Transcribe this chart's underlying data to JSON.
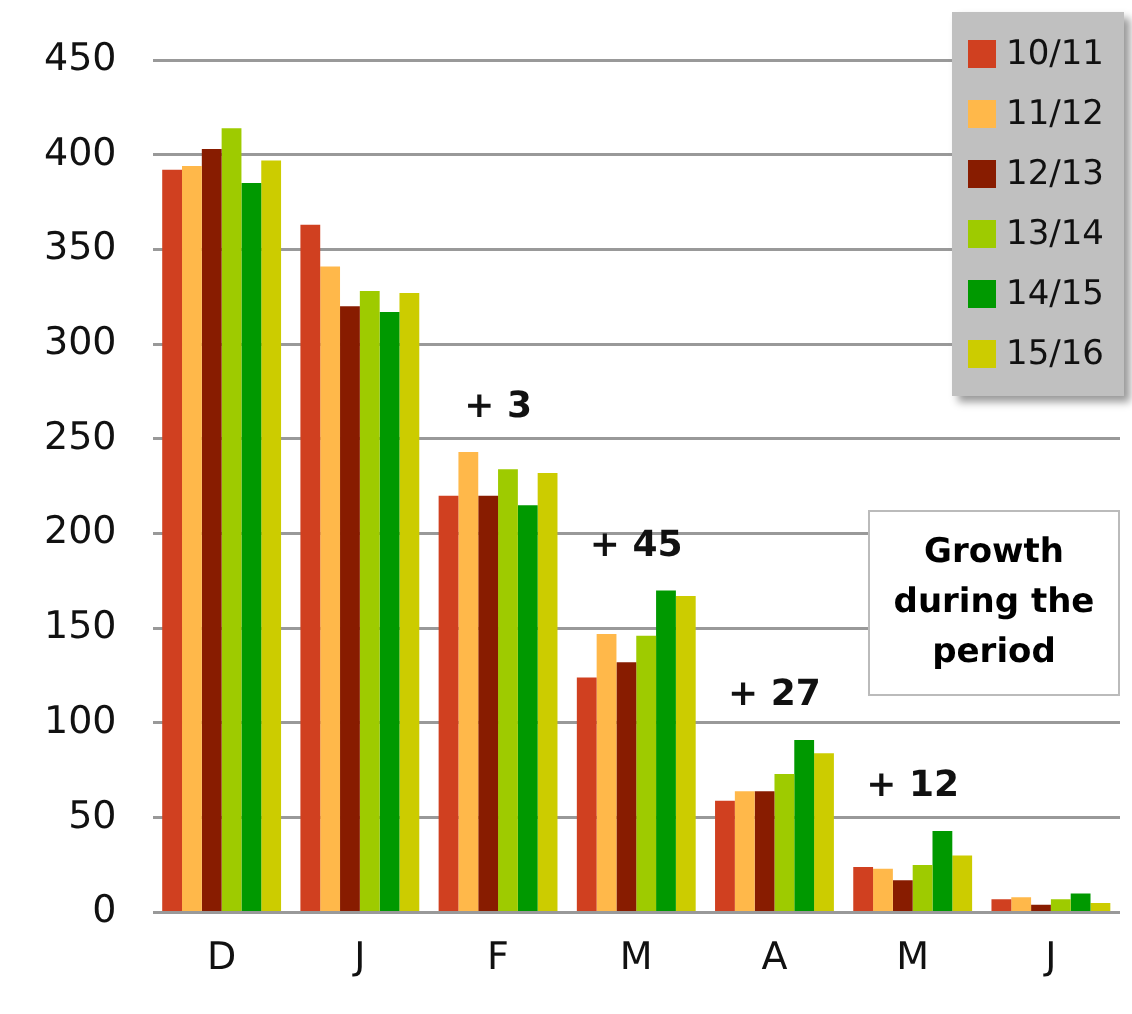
{
  "chart_data": {
    "type": "bar",
    "categories": [
      "D",
      "J",
      "F",
      "M",
      "A",
      "M",
      "J"
    ],
    "series": [
      {
        "name": "10/11",
        "color": "#d04020",
        "values": [
          392,
          363,
          220,
          124,
          59,
          24,
          7
        ]
      },
      {
        "name": "11/12",
        "color": "#ffb84a",
        "values": [
          394,
          341,
          243,
          147,
          64,
          23,
          8
        ]
      },
      {
        "name": "12/13",
        "color": "#881c00",
        "values": [
          403,
          320,
          220,
          132,
          64,
          17,
          4
        ]
      },
      {
        "name": "13/14",
        "color": "#9ecb00",
        "values": [
          414,
          328,
          234,
          146,
          73,
          25,
          7
        ]
      },
      {
        "name": "14/15",
        "color": "#009900",
        "values": [
          385,
          317,
          215,
          170,
          91,
          43,
          10
        ]
      },
      {
        "name": "15/16",
        "color": "#cccc00",
        "values": [
          397,
          327,
          232,
          167,
          84,
          30,
          5
        ]
      }
    ],
    "ylim": [
      0,
      450
    ],
    "yticks": [
      0,
      50,
      100,
      150,
      200,
      250,
      300,
      350,
      400,
      450
    ],
    "grid": "y",
    "legend": "top right",
    "annotations": [
      "+ 3",
      "+ 45",
      "+ 27",
      "+ 12",
      "Growth during the period"
    ]
  }
}
